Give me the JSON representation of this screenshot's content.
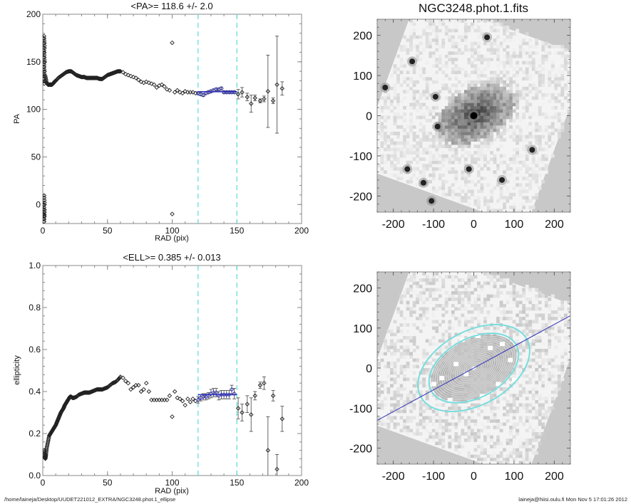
{
  "chart_data": [
    {
      "id": "pa",
      "type": "scatter",
      "title": "<PA>= 118.6 +/-   2.0",
      "xlabel": "RAD (pix)",
      "ylabel": "PA",
      "xlim": [
        0,
        200
      ],
      "ylim": [
        -20,
        200
      ],
      "xticks": [
        "0",
        "50",
        "100",
        "150",
        "200"
      ],
      "yticks": [
        "0",
        "50",
        "100",
        "150",
        "200"
      ],
      "ytick_values": [
        0,
        50,
        100,
        150,
        200
      ],
      "xtick_values": [
        0,
        50,
        100,
        150,
        200
      ],
      "fit_range": [
        120,
        150
      ],
      "fit_value": 118.6,
      "fit_error": 2.0,
      "colors": {
        "points": "#222222",
        "fit": "#3333bb",
        "range": "#66dddd",
        "axis": "#888888"
      },
      "dense_inner": [
        [
          0.5,
          175
        ],
        [
          0.6,
          165
        ],
        [
          0.7,
          155
        ],
        [
          0.8,
          145
        ],
        [
          0.9,
          135
        ],
        [
          1.0,
          170
        ],
        [
          1.1,
          160
        ],
        [
          1.2,
          150
        ],
        [
          1.3,
          140
        ],
        [
          1.4,
          130
        ],
        [
          0.5,
          -5
        ],
        [
          0.6,
          -10
        ],
        [
          0.7,
          -15
        ],
        [
          0.8,
          -18
        ],
        [
          0.9,
          0
        ],
        [
          1.0,
          -8
        ],
        [
          1.2,
          -12
        ]
      ],
      "series": [
        {
          "name": "PA profile",
          "x": [
            2,
            3,
            4,
            5,
            6,
            7,
            8,
            9,
            10,
            12,
            14,
            16,
            18,
            20,
            22,
            24,
            26,
            28,
            30,
            32,
            34,
            36,
            38,
            40,
            42,
            44,
            46,
            48,
            50,
            52,
            54,
            56,
            58,
            60,
            62,
            64,
            66,
            68,
            70,
            72,
            74,
            76,
            78,
            80,
            82,
            84,
            86,
            88,
            90,
            92,
            94,
            96,
            98,
            100,
            102,
            104,
            106,
            108,
            110,
            112,
            114,
            116,
            118
          ],
          "y": [
            135,
            128,
            126,
            126,
            126,
            126,
            127,
            129,
            130,
            133,
            135,
            137,
            139,
            140,
            140,
            138,
            136,
            135,
            134,
            134,
            133,
            133,
            133,
            133,
            133,
            132,
            132,
            134,
            136,
            137,
            138,
            139,
            140,
            140,
            139,
            137,
            136,
            135,
            134,
            133,
            131,
            129,
            128,
            129,
            128,
            127,
            126,
            123,
            125,
            126,
            124,
            121,
            120,
            170,
            118,
            120,
            118,
            117,
            119,
            118,
            118,
            118,
            117
          ]
        },
        {
          "name": "PA outlier low",
          "x": [
            100
          ],
          "y": [
            -10
          ]
        }
      ],
      "fit_points": {
        "x": [
          120,
          122,
          124,
          126,
          128,
          130,
          132,
          134,
          136,
          138,
          140,
          142,
          144,
          146,
          148
        ],
        "y": [
          117,
          116,
          115,
          117,
          118,
          119,
          120,
          121,
          121,
          122,
          118,
          118,
          118,
          118,
          118
        ],
        "err": [
          1.5,
          1.5,
          1.5,
          1.5,
          1.5,
          1.5,
          1.5,
          1.5,
          1.5,
          1.5,
          1.5,
          1.5,
          1.5,
          1.5,
          1.5
        ]
      },
      "outer_points": {
        "x": [
          151,
          154,
          158,
          161,
          164,
          168,
          171,
          174,
          178,
          181,
          185
        ],
        "y": [
          116,
          118,
          113,
          106,
          112,
          109,
          111,
          119,
          109,
          126,
          122
        ],
        "err": [
          5,
          5,
          4,
          9,
          3,
          2,
          3,
          38,
          3,
          51,
          7
        ]
      }
    },
    {
      "id": "ell",
      "type": "scatter",
      "title": "<ELL>= 0.385 +/-  0.013",
      "xlabel": "RAD (pix)",
      "ylabel": "ellipticity",
      "xlim": [
        0,
        200
      ],
      "ylim": [
        0.0,
        1.0
      ],
      "xticks": [
        "0",
        "50",
        "100",
        "150",
        "200"
      ],
      "yticks": [
        "0.0",
        "0.2",
        "0.4",
        "0.6",
        "0.8",
        "1.0"
      ],
      "ytick_values": [
        0.0,
        0.2,
        0.4,
        0.6,
        0.8,
        1.0
      ],
      "xtick_values": [
        0,
        50,
        100,
        150,
        200
      ],
      "fit_range": [
        120,
        150
      ],
      "fit_value": 0.385,
      "fit_error": 0.013,
      "colors": {
        "points": "#222222",
        "fit": "#3333bb",
        "range": "#66dddd",
        "axis": "#888888"
      },
      "series": [
        {
          "name": "ELL profile",
          "x": [
            1,
            1.5,
            2,
            2.5,
            3,
            4,
            5,
            6,
            7,
            8,
            9,
            10,
            11,
            12,
            13,
            14,
            15,
            16,
            17,
            18,
            19,
            20,
            21,
            22,
            23,
            24,
            26,
            28,
            30,
            32,
            34,
            36,
            38,
            40,
            42,
            44,
            46,
            48,
            50,
            52,
            54,
            56,
            58,
            60,
            62,
            64,
            66,
            68,
            70,
            72,
            74,
            76,
            78,
            80,
            82,
            84,
            86,
            88,
            90,
            92,
            94,
            96,
            98,
            100,
            102,
            104,
            106,
            108,
            110,
            112,
            114,
            116,
            118
          ],
          "y": [
            0.12,
            0.09,
            0.08,
            0.1,
            0.13,
            0.16,
            0.19,
            0.2,
            0.21,
            0.22,
            0.23,
            0.24,
            0.255,
            0.27,
            0.285,
            0.3,
            0.31,
            0.32,
            0.335,
            0.345,
            0.355,
            0.365,
            0.375,
            0.375,
            0.37,
            0.37,
            0.375,
            0.385,
            0.39,
            0.395,
            0.395,
            0.395,
            0.4,
            0.405,
            0.41,
            0.41,
            0.41,
            0.415,
            0.42,
            0.43,
            0.44,
            0.445,
            0.455,
            0.47,
            0.465,
            0.45,
            0.44,
            0.41,
            0.42,
            0.43,
            0.43,
            0.4,
            0.41,
            0.44,
            0.4,
            0.36,
            0.36,
            0.36,
            0.36,
            0.36,
            0.36,
            0.36,
            0.38,
            0.28,
            0.4,
            0.37,
            0.365,
            0.355,
            0.335,
            0.365,
            0.35,
            0.365,
            0.355
          ]
        }
      ],
      "fit_points": {
        "x": [
          120,
          122,
          124,
          126,
          128,
          130,
          132,
          134,
          136,
          138,
          140,
          142,
          144,
          146,
          148
        ],
        "y": [
          0.36,
          0.37,
          0.375,
          0.375,
          0.38,
          0.39,
          0.395,
          0.395,
          0.38,
          0.385,
          0.385,
          0.385,
          0.385,
          0.41,
          0.39
        ],
        "err": [
          0.015,
          0.015,
          0.015,
          0.015,
          0.015,
          0.02,
          0.02,
          0.02,
          0.02,
          0.02,
          0.02,
          0.02,
          0.02,
          0.02,
          0.025
        ]
      },
      "outer_points": {
        "x": [
          151,
          154,
          158,
          161,
          164,
          168,
          171,
          174,
          178,
          181,
          185
        ],
        "y": [
          0.32,
          0.3,
          0.34,
          0.29,
          0.38,
          0.43,
          0.44,
          0.12,
          0.38,
          0.03,
          0.27
        ],
        "err": [
          0.05,
          0.04,
          0.04,
          0.08,
          0.02,
          0.015,
          0.03,
          0.16,
          0.025,
          0.07,
          0.06
        ]
      }
    },
    {
      "id": "image-top",
      "type": "heatmap",
      "title": "NGC3248.phot.1.fits",
      "xlim": [
        -240,
        240
      ],
      "ylim": [
        -240,
        240
      ],
      "xticks": [
        "-200",
        "-100",
        "0",
        "100",
        "200"
      ],
      "yticks": [
        "-200",
        "-100",
        "0",
        "100",
        "200"
      ],
      "tick_values": [
        -200,
        -100,
        0,
        100,
        200
      ],
      "galaxy": {
        "center": [
          0,
          0
        ],
        "pa_deg": 118.6,
        "ellipticity": 0.385
      },
      "bright_sources": [
        [
          0,
          0
        ],
        [
          -165,
          -133
        ],
        [
          -90,
          -27
        ],
        [
          -12,
          -133
        ],
        [
          -105,
          -212
        ],
        [
          -153,
          135
        ],
        [
          -220,
          70
        ],
        [
          -95,
          47
        ],
        [
          -125,
          -167
        ],
        [
          70,
          -160
        ],
        [
          33,
          195
        ],
        [
          145,
          -85
        ]
      ]
    },
    {
      "id": "image-bottom",
      "type": "heatmap",
      "title": "",
      "xlim": [
        -240,
        240
      ],
      "ylim": [
        -240,
        240
      ],
      "xticks": [
        "-200",
        "-100",
        "0",
        "100",
        "200"
      ],
      "yticks": [
        "-200",
        "-100",
        "0",
        "100",
        "200"
      ],
      "tick_values": [
        -200,
        -100,
        0,
        100,
        200
      ],
      "fit_ellipses_semi_major": [
        120,
        150
      ],
      "pa_line_deg": 118.6,
      "colors": {
        "ellipse": "#77dddd",
        "pa_line": "#3333bb",
        "contours": "#d8d8d8"
      }
    }
  ],
  "footer": {
    "left": "/home/laineja/Desktop/UUDET221012_EXTRA/NGC3248.phot.1_ellipse",
    "right": "laineja@hiisi.oulu.fi  Mon Nov  5 17:01:26 2012"
  }
}
